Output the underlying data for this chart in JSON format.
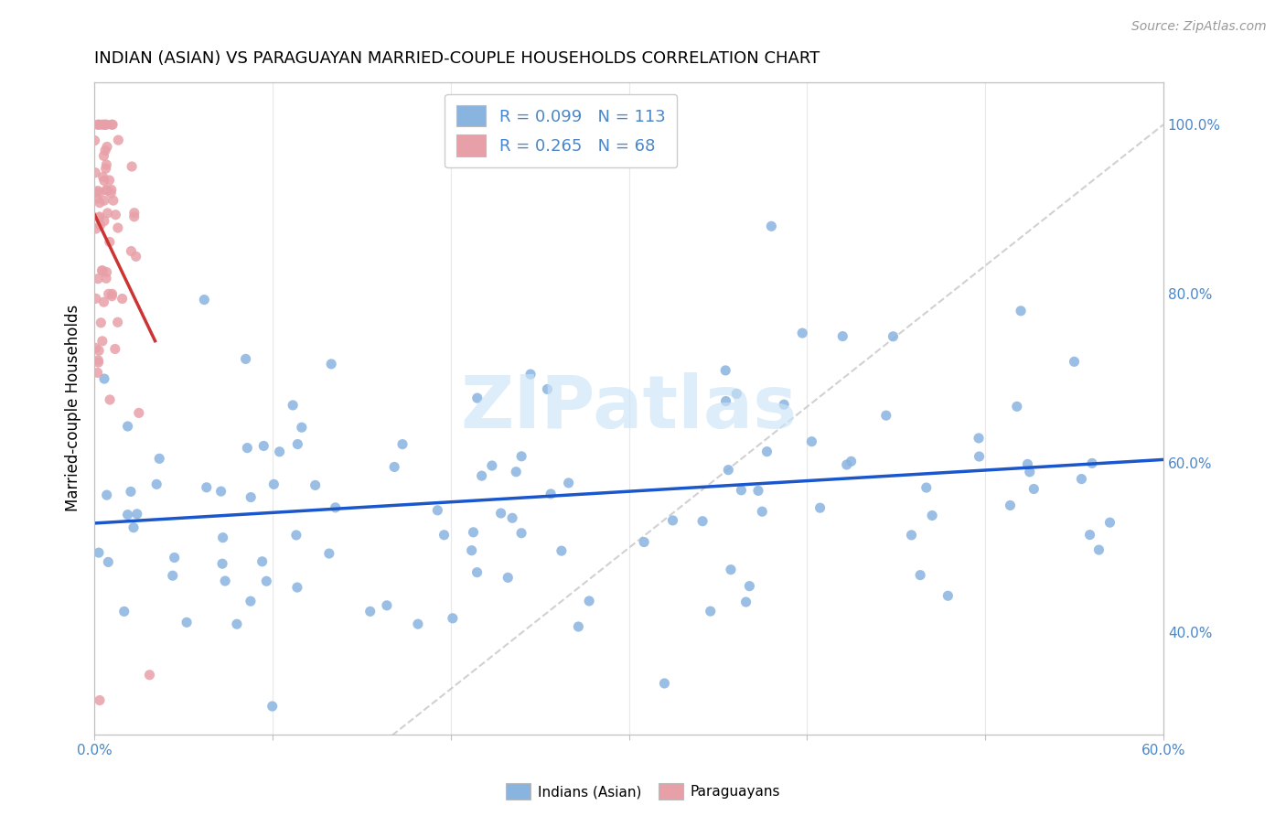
{
  "title": "INDIAN (ASIAN) VS PARAGUAYAN MARRIED-COUPLE HOUSEHOLDS CORRELATION CHART",
  "source": "Source: ZipAtlas.com",
  "ylabel": "Married-couple Households",
  "blue_color": "#8ab4e0",
  "pink_color": "#e8a0a8",
  "blue_line_color": "#1a56cc",
  "pink_line_color": "#cc3333",
  "diagonal_color": "#cccccc",
  "watermark": "ZIPatlas",
  "xlim": [
    0.0,
    0.6
  ],
  "ylim": [
    0.28,
    1.05
  ],
  "yticks": [
    0.4,
    0.6,
    0.8,
    1.0
  ],
  "ytick_labels": [
    "40.0%",
    "60.0%",
    "80.0%",
    "100.0%"
  ],
  "xtick_positions": [
    0.0,
    0.1,
    0.2,
    0.3,
    0.4,
    0.5,
    0.6
  ],
  "xtick_labels": [
    "0.0%",
    "",
    "",
    "",
    "",
    "",
    "60.0%"
  ],
  "legend_text1": "R = 0.099   N = 113",
  "legend_text2": "R = 0.265   N = 68",
  "bottom_legend_labels": [
    "Indians (Asian)",
    "Paraguayans"
  ],
  "title_fontsize": 13,
  "axis_label_color": "#4a86c8",
  "axis_label_fontsize": 11
}
